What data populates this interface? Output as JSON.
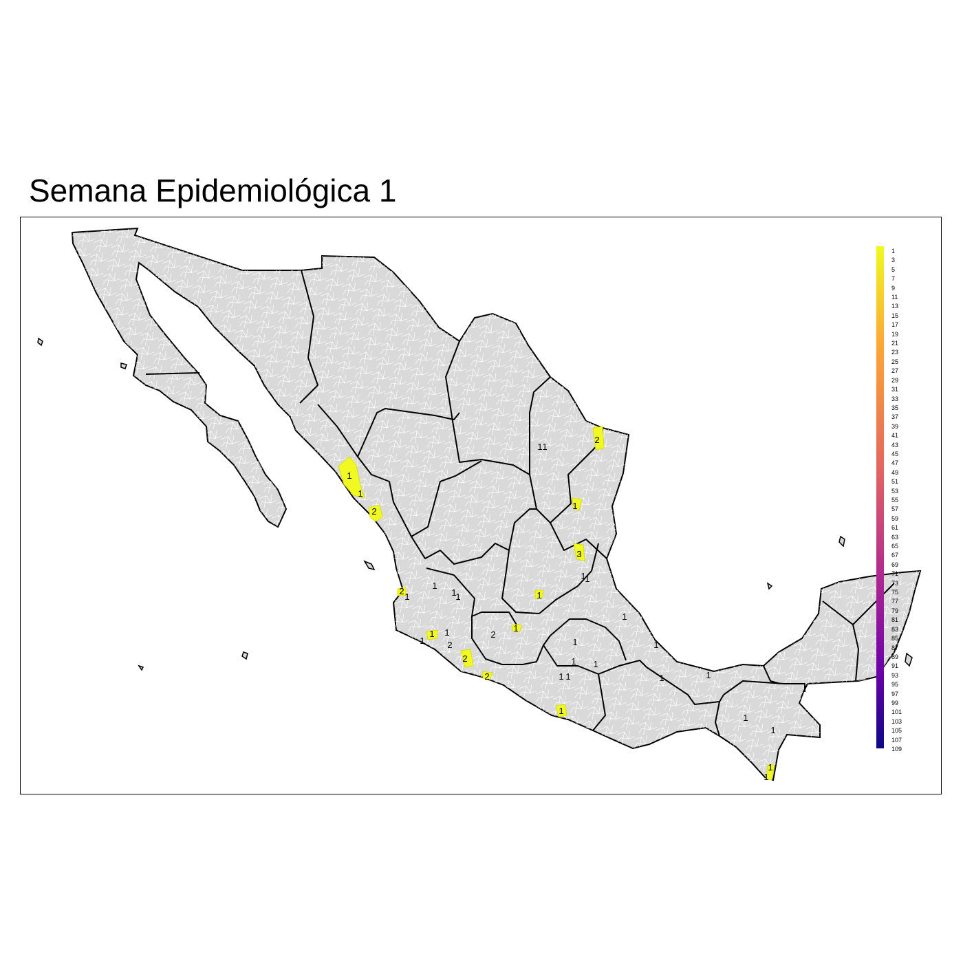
{
  "title": "Semana Epidemiológica 1",
  "colors": {
    "land": "#d9d9d9",
    "municipality_border": "#ffffff",
    "state_border": "#000000",
    "highlight": "#f0f921",
    "scale": [
      "#f0f921",
      "#fca636",
      "#e16462",
      "#b12a90",
      "#6a00a8",
      "#0d0887"
    ]
  },
  "legend": {
    "type": "continuous-colorbar",
    "min": 1,
    "max": 109,
    "ticks": [
      "1",
      "3",
      "5",
      "7",
      "9",
      "11",
      "13",
      "15",
      "17",
      "19",
      "21",
      "23",
      "25",
      "27",
      "29",
      "31",
      "33",
      "35",
      "37",
      "39",
      "41",
      "43",
      "45",
      "47",
      "49",
      "51",
      "53",
      "55",
      "57",
      "59",
      "61",
      "63",
      "65",
      "67",
      "69",
      "71",
      "73",
      "75",
      "77",
      "79",
      "81",
      "83",
      "85",
      "87",
      "89",
      "91",
      "93",
      "95",
      "97",
      "99",
      "101",
      "103",
      "105",
      "107",
      "109"
    ]
  },
  "cases": [
    {
      "label": "1",
      "value": 1
    },
    {
      "label": "1",
      "value": 1
    },
    {
      "label": "2",
      "value": 2
    },
    {
      "label": "1",
      "value": 1
    },
    {
      "label": "1",
      "value": 1
    },
    {
      "label": "2",
      "value": 2
    },
    {
      "label": "1",
      "value": 1
    },
    {
      "label": "3",
      "value": 3
    },
    {
      "label": "1",
      "value": 1
    },
    {
      "label": "1",
      "value": 1
    },
    {
      "label": "1",
      "value": 1
    },
    {
      "label": "1",
      "value": 1
    },
    {
      "label": "1",
      "value": 1
    },
    {
      "label": "1",
      "value": 1
    },
    {
      "label": "2",
      "value": 2
    },
    {
      "label": "1",
      "value": 1
    },
    {
      "label": "2",
      "value": 2
    },
    {
      "label": "1",
      "value": 1
    },
    {
      "label": "1",
      "value": 1
    },
    {
      "label": "1",
      "value": 1
    },
    {
      "label": "1",
      "value": 1
    },
    {
      "label": "2",
      "value": 2
    },
    {
      "label": "2",
      "value": 2
    },
    {
      "label": "2",
      "value": 2
    },
    {
      "label": "1",
      "value": 1
    },
    {
      "label": "1",
      "value": 1
    },
    {
      "label": "1",
      "value": 1
    },
    {
      "label": "1",
      "value": 1
    },
    {
      "label": "1",
      "value": 1
    },
    {
      "label": "1",
      "value": 1
    },
    {
      "label": "1",
      "value": 1
    },
    {
      "label": "1",
      "value": 1
    },
    {
      "label": "1",
      "value": 1
    },
    {
      "label": "1",
      "value": 1
    },
    {
      "label": "1",
      "value": 1
    },
    {
      "label": "1",
      "value": 1
    },
    {
      "label": "1",
      "value": 1
    },
    {
      "label": "1",
      "value": 1
    }
  ]
}
